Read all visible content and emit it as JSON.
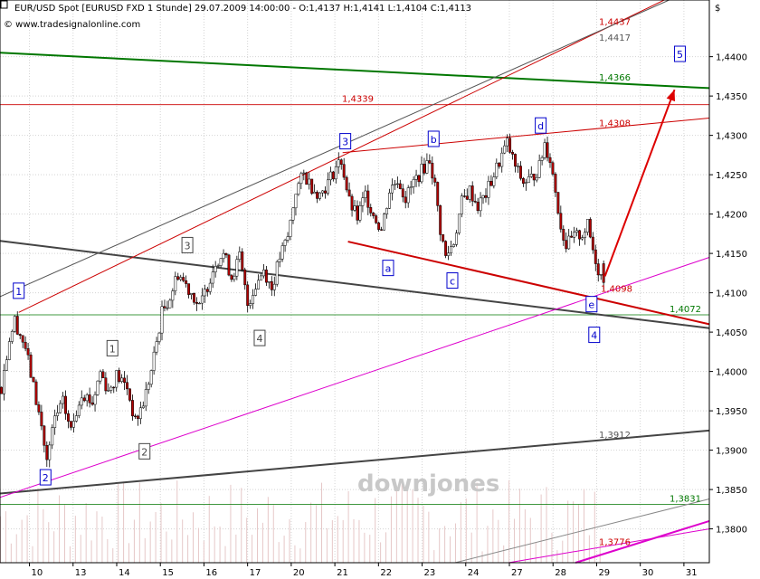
{
  "header": {
    "title": "EUR/USD Spot [EURUSD FXD   1 Stunde] 29.07.2009 14:00:00 - O:1,4137 H:1,4141 L:1,4104 C:1,4113",
    "source": "© www.tradesignalonline.com",
    "currency_symbol": "$",
    "watermark": "downjones"
  },
  "chart_data": {
    "type": "candlestick",
    "title": "EUR/USD Spot [EURUSD FXD   1 Stunde] 29.07.2009 14:00:00 - O:1,4137 H:1,4141 L:1,4104 C:1,4113",
    "last_bar": {
      "open": 1.4137,
      "high": 1.4141,
      "low": 1.4104,
      "close": 1.4113
    },
    "ylim": [
      1.3757,
      1.4472
    ],
    "y_ticks": [
      "1,3800",
      "1,3850",
      "1,3900",
      "1,3950",
      "1,4000",
      "1,4050",
      "1,4100",
      "1,4150",
      "1,4200",
      "1,4250",
      "1,4300",
      "1,4350",
      "1,4400"
    ],
    "y_tick_values": [
      1.38,
      1.385,
      1.39,
      1.395,
      1.4,
      1.405,
      1.41,
      1.415,
      1.42,
      1.425,
      1.43,
      1.435,
      1.44
    ],
    "x_ticks": [
      "10",
      "13",
      "14",
      "15",
      "16",
      "17",
      "20",
      "21",
      "22",
      "23",
      "24",
      "27",
      "28",
      "29",
      "30",
      "31"
    ],
    "grid": true,
    "path_anchors": [
      {
        "x": 0,
        "y": 1.398
      },
      {
        "x": 3,
        "y": 1.4042
      },
      {
        "x": 5,
        "y": 1.4065
      },
      {
        "x": 9,
        "y": 1.403
      },
      {
        "x": 12,
        "y": 1.398
      },
      {
        "x": 15,
        "y": 1.393
      },
      {
        "x": 17,
        "y": 1.3885
      },
      {
        "x": 20,
        "y": 1.394
      },
      {
        "x": 23,
        "y": 1.396
      },
      {
        "x": 26,
        "y": 1.3925
      },
      {
        "x": 30,
        "y": 1.3975
      },
      {
        "x": 34,
        "y": 1.396
      },
      {
        "x": 37,
        "y": 1.4
      },
      {
        "x": 40,
        "y": 1.3975
      },
      {
        "x": 43,
        "y": 1.3995
      },
      {
        "x": 47,
        "y": 1.398
      },
      {
        "x": 50,
        "y": 1.3935
      },
      {
        "x": 53,
        "y": 1.396
      },
      {
        "x": 56,
        "y": 1.4
      },
      {
        "x": 60,
        "y": 1.4075
      },
      {
        "x": 63,
        "y": 1.4095
      },
      {
        "x": 66,
        "y": 1.4125
      },
      {
        "x": 69,
        "y": 1.411
      },
      {
        "x": 72,
        "y": 1.4095
      },
      {
        "x": 74,
        "y": 1.408
      },
      {
        "x": 77,
        "y": 1.411
      },
      {
        "x": 80,
        "y": 1.414
      },
      {
        "x": 83,
        "y": 1.415
      },
      {
        "x": 86,
        "y": 1.412
      },
      {
        "x": 89,
        "y": 1.4145
      },
      {
        "x": 92,
        "y": 1.4085
      },
      {
        "x": 95,
        "y": 1.411
      },
      {
        "x": 98,
        "y": 1.413
      },
      {
        "x": 101,
        "y": 1.4105
      },
      {
        "x": 104,
        "y": 1.4145
      },
      {
        "x": 107,
        "y": 1.417
      },
      {
        "x": 110,
        "y": 1.423
      },
      {
        "x": 113,
        "y": 1.425
      },
      {
        "x": 116,
        "y": 1.4235
      },
      {
        "x": 119,
        "y": 1.4225
      },
      {
        "x": 122,
        "y": 1.424
      },
      {
        "x": 125,
        "y": 1.426
      },
      {
        "x": 127,
        "y": 1.4268
      },
      {
        "x": 130,
        "y": 1.4215
      },
      {
        "x": 133,
        "y": 1.4195
      },
      {
        "x": 136,
        "y": 1.4225
      },
      {
        "x": 139,
        "y": 1.42
      },
      {
        "x": 142,
        "y": 1.418
      },
      {
        "x": 145,
        "y": 1.423
      },
      {
        "x": 148,
        "y": 1.4245
      },
      {
        "x": 151,
        "y": 1.422
      },
      {
        "x": 154,
        "y": 1.424
      },
      {
        "x": 157,
        "y": 1.4255
      },
      {
        "x": 160,
        "y": 1.427
      },
      {
        "x": 162,
        "y": 1.4235
      },
      {
        "x": 164,
        "y": 1.418
      },
      {
        "x": 166,
        "y": 1.4145
      },
      {
        "x": 169,
        "y": 1.4165
      },
      {
        "x": 172,
        "y": 1.4215
      },
      {
        "x": 175,
        "y": 1.423
      },
      {
        "x": 178,
        "y": 1.421
      },
      {
        "x": 181,
        "y": 1.4225
      },
      {
        "x": 184,
        "y": 1.425
      },
      {
        "x": 187,
        "y": 1.4275
      },
      {
        "x": 189,
        "y": 1.429
      },
      {
        "x": 192,
        "y": 1.426
      },
      {
        "x": 195,
        "y": 1.424
      },
      {
        "x": 198,
        "y": 1.4245
      },
      {
        "x": 201,
        "y": 1.426
      },
      {
        "x": 203,
        "y": 1.429
      },
      {
        "x": 205,
        "y": 1.427
      },
      {
        "x": 207,
        "y": 1.423
      },
      {
        "x": 209,
        "y": 1.4185
      },
      {
        "x": 211,
        "y": 1.416
      },
      {
        "x": 214,
        "y": 1.417
      },
      {
        "x": 217,
        "y": 1.4175
      },
      {
        "x": 219,
        "y": 1.4185
      },
      {
        "x": 221,
        "y": 1.4155
      },
      {
        "x": 223,
        "y": 1.413
      },
      {
        "x": 225,
        "y": 1.4113
      }
    ],
    "levels": [
      {
        "label": "1,4437",
        "value": 1.4437,
        "color": "#cc0000"
      },
      {
        "label": "1,4417",
        "value": 1.4417,
        "color": "#555555"
      },
      {
        "label": "1,4366",
        "value": 1.4366,
        "color": "#007700"
      },
      {
        "label": "1,4339",
        "value": 1.4339,
        "color": "#cc0000"
      },
      {
        "label": "1,4308",
        "value": 1.4308,
        "color": "#cc0000"
      },
      {
        "label": "1,4098",
        "value": 1.4098,
        "color": "#cc0000"
      },
      {
        "label": "1,4072",
        "value": 1.4072,
        "color": "#007700"
      },
      {
        "label": "1,3912",
        "value": 1.3912,
        "color": "#555555"
      },
      {
        "label": "1,3831",
        "value": 1.3831,
        "color": "#007700"
      },
      {
        "label": "1,3776",
        "value": 1.3776,
        "color": "#cc0000"
      }
    ],
    "trendlines": [
      {
        "name": "green-resistance",
        "x": [
          0,
          265
        ],
        "y": [
          1.4405,
          1.436
        ],
        "color": "#007700",
        "width": 2
      },
      {
        "name": "black-trend-down",
        "x": [
          0,
          265
        ],
        "y": [
          1.4166,
          1.4055
        ],
        "color": "#444444",
        "width": 2
      },
      {
        "name": "black-trend-up",
        "x": [
          0,
          265
        ],
        "y": [
          1.3845,
          1.3925
        ],
        "color": "#444444",
        "width": 2
      },
      {
        "name": "red-channel-upper",
        "x": [
          7,
          250
        ],
        "y": [
          1.4075,
          1.4475
        ],
        "color": "#cc0000",
        "width": 1
      },
      {
        "name": "gray-channel-upper",
        "x": [
          0,
          250
        ],
        "y": [
          1.4095,
          1.4472
        ],
        "color": "#555555",
        "width": 1
      },
      {
        "name": "red-triangle-top",
        "x": [
          128,
          265
        ],
        "y": [
          1.4278,
          1.4322
        ],
        "color": "#cc0000",
        "width": 1
      },
      {
        "name": "red-triangle-bottom",
        "x": [
          130,
          265
        ],
        "y": [
          1.4165,
          1.406
        ],
        "color": "#cc0000",
        "width": 2
      },
      {
        "name": "magenta-channel",
        "x": [
          0,
          265
        ],
        "y": [
          1.384,
          1.4145
        ],
        "color": "#dd00cc",
        "width": 1
      },
      {
        "name": "magenta-lower",
        "x": [
          215,
          265
        ],
        "y": [
          1.3757,
          1.381
        ],
        "color": "#dd00cc",
        "width": 2
      },
      {
        "name": "gray-lower",
        "x": [
          170,
          265
        ],
        "y": [
          1.3757,
          1.3838
        ],
        "color": "#888888",
        "width": 1
      },
      {
        "name": "magenta-lower-thin",
        "x": [
          190,
          265
        ],
        "y": [
          1.3757,
          1.38
        ],
        "color": "#dd00cc",
        "width": 1
      }
    ],
    "forecast_arrow": {
      "x": [
        226,
        252
      ],
      "y": [
        1.4121,
        1.4358
      ],
      "color": "#dd0000"
    },
    "wave_labels": [
      {
        "text": "1",
        "x": 7,
        "y": 1.4102,
        "color": "#0000cc"
      },
      {
        "text": "2",
        "x": 17,
        "y": 1.3865,
        "color": "#0000cc"
      },
      {
        "text": "1",
        "x": 42,
        "y": 1.4029,
        "color": "#444444"
      },
      {
        "text": "2",
        "x": 54,
        "y": 1.3898,
        "color": "#444444"
      },
      {
        "text": "3",
        "x": 70,
        "y": 1.416,
        "color": "#444444"
      },
      {
        "text": "4",
        "x": 97,
        "y": 1.4042,
        "color": "#444444"
      },
      {
        "text": "3",
        "x": 129,
        "y": 1.4292,
        "color": "#0000cc"
      },
      {
        "text": "a",
        "x": 145,
        "y": 1.4131,
        "color": "#0000cc"
      },
      {
        "text": "b",
        "x": 162,
        "y": 1.4295,
        "color": "#0000cc"
      },
      {
        "text": "c",
        "x": 169,
        "y": 1.4115,
        "color": "#0000cc"
      },
      {
        "text": "d",
        "x": 202,
        "y": 1.4312,
        "color": "#0000cc"
      },
      {
        "text": "e",
        "x": 221,
        "y": 1.4085,
        "color": "#0000cc"
      },
      {
        "text": "4",
        "x": 222,
        "y": 1.4046,
        "color": "#0000cc"
      },
      {
        "text": "5",
        "x": 254,
        "y": 1.4403,
        "color": "#0000cc"
      }
    ]
  }
}
